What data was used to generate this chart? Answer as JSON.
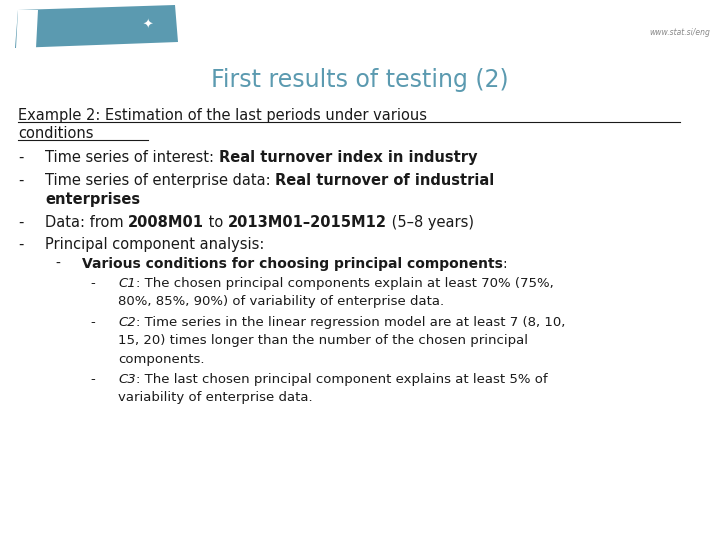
{
  "title": "First results of testing (2)",
  "title_color": "#5b9ab0",
  "watermark": "www.stat.si/eng",
  "bg_color": "#ffffff",
  "logo_color": "#5b9ab0",
  "heading_line1": "Example 2: Estimation of the last periods under various",
  "heading_line2": "conditions",
  "text_color": "#1a1a1a",
  "font_size_body": 10.5,
  "font_size_sub1": 10.0,
  "font_size_sub2": 9.5
}
